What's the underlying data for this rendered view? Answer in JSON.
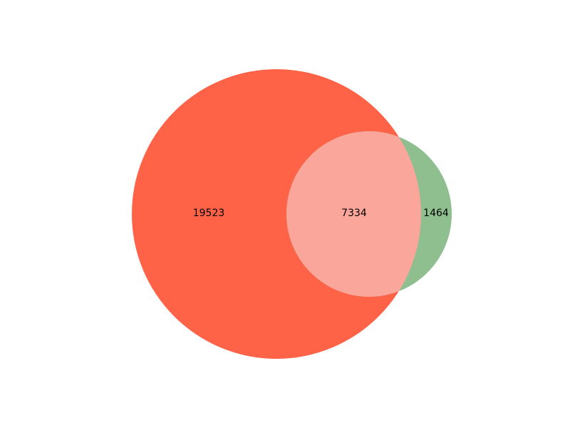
{
  "venn": {
    "sets": [
      {
        "id": "A",
        "color": "#ff6347"
      },
      {
        "id": "B",
        "color": "#8fbf8f"
      }
    ],
    "overlap_color": "#faa69b",
    "regions": {
      "only_a": "19523",
      "a_and_b": "7334",
      "only_b": "1464"
    }
  }
}
